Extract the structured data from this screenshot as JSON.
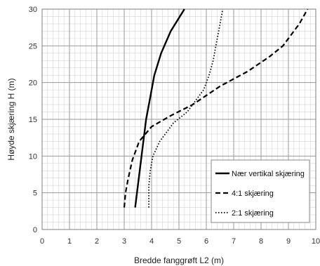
{
  "chart_data": {
    "type": "line",
    "title": "",
    "xlabel": "Bredde fanggrøft L2 (m)",
    "ylabel": "Høyde skjæring H (m)",
    "xlim": [
      0,
      10
    ],
    "ylim": [
      0,
      30
    ],
    "x_ticks": [
      "0",
      "1",
      "2",
      "3",
      "4",
      "5",
      "6",
      "7",
      "8",
      "9",
      "10"
    ],
    "y_ticks": [
      "0",
      "5",
      "10",
      "15",
      "20",
      "25",
      "30"
    ],
    "grid": true,
    "legend_position": "bottom-right",
    "series": [
      {
        "name": "Nær vertikal skjæring",
        "style": "solid",
        "color": "#000000",
        "points": [
          [
            3.4,
            3
          ],
          [
            3.5,
            6
          ],
          [
            3.6,
            9
          ],
          [
            3.7,
            12
          ],
          [
            3.8,
            15
          ],
          [
            3.95,
            18
          ],
          [
            4.1,
            21
          ],
          [
            4.35,
            24
          ],
          [
            4.7,
            27
          ],
          [
            5.2,
            30
          ]
        ]
      },
      {
        "name": "4:1 skjæring",
        "style": "dashed",
        "color": "#000000",
        "points": [
          [
            3.0,
            3
          ],
          [
            3.05,
            5
          ],
          [
            3.15,
            7
          ],
          [
            3.3,
            9.5
          ],
          [
            3.55,
            12
          ],
          [
            4.0,
            14
          ],
          [
            4.7,
            15.5
          ],
          [
            5.5,
            17
          ],
          [
            6.5,
            19.5
          ],
          [
            7.5,
            21.5
          ],
          [
            8.3,
            23.5
          ],
          [
            8.8,
            25
          ],
          [
            9.1,
            26.5
          ],
          [
            9.4,
            28
          ],
          [
            9.7,
            30
          ]
        ]
      },
      {
        "name": "2:1 skjæring",
        "style": "dotted",
        "color": "#000000",
        "points": [
          [
            3.9,
            3
          ],
          [
            3.9,
            6
          ],
          [
            3.95,
            8
          ],
          [
            4.05,
            10
          ],
          [
            4.3,
            12
          ],
          [
            4.8,
            14.5
          ],
          [
            5.3,
            16
          ],
          [
            5.6,
            17.5
          ],
          [
            5.9,
            19
          ],
          [
            6.1,
            21
          ],
          [
            6.25,
            23
          ],
          [
            6.35,
            25
          ],
          [
            6.45,
            27
          ],
          [
            6.55,
            29
          ],
          [
            6.6,
            30
          ]
        ]
      }
    ]
  }
}
